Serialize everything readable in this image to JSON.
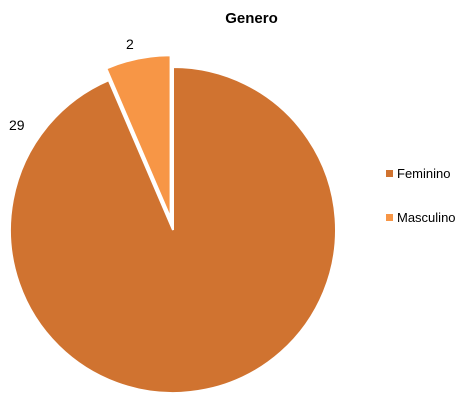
{
  "chart_data": {
    "type": "pie",
    "title": "Genero",
    "categories": [
      "Feminino",
      "Masculino"
    ],
    "values": [
      29,
      2
    ],
    "colors": [
      "#D07330",
      "#F79646"
    ],
    "exploded_slice": "Masculino",
    "legend_position": "right",
    "data_labels": [
      "29",
      "2"
    ]
  }
}
